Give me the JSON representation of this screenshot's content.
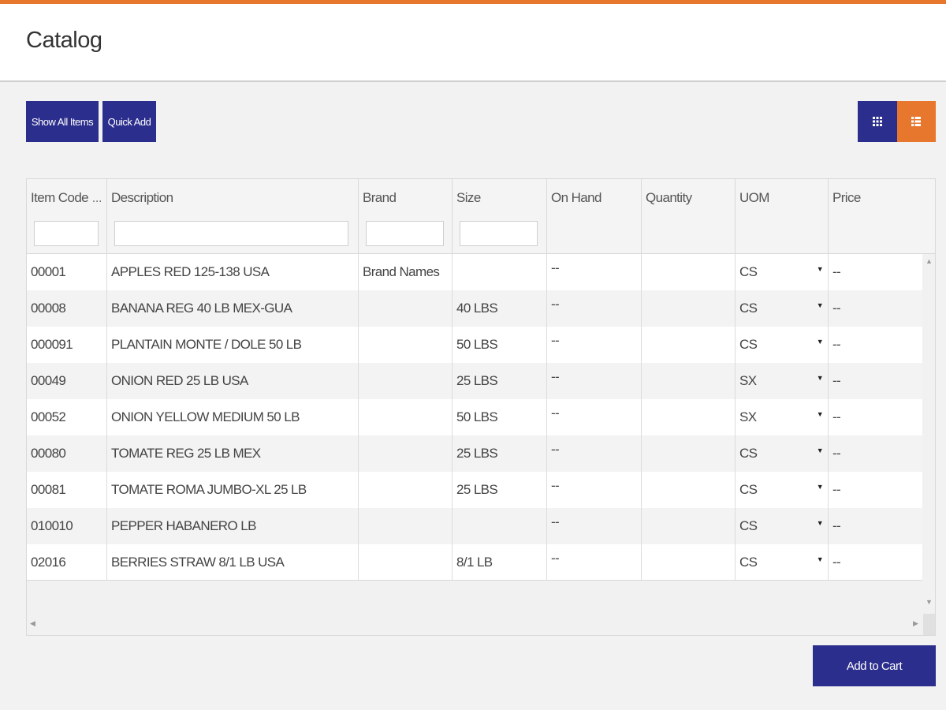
{
  "header": {
    "title": "Catalog"
  },
  "toolbar": {
    "show_all_label": "Show All Items",
    "quick_add_label": "Quick Add",
    "view_grid_icon": "grid-icon",
    "view_list_icon": "list-icon"
  },
  "colors": {
    "accent": "#e8772e",
    "primary": "#2b2e8c"
  },
  "table": {
    "columns": [
      "Item Code",
      "Description",
      "Brand",
      "Size",
      "On Hand",
      "Quantity",
      "UOM",
      "Price"
    ],
    "truncation": "...",
    "rows": [
      {
        "code": "00001",
        "description": "APPLES RED 125-138 USA",
        "brand": "Brand Names",
        "size": "",
        "on_hand": "--",
        "quantity": "",
        "uom": "CS",
        "price": "--"
      },
      {
        "code": "00008",
        "description": "BANANA REG 40 LB MEX-GUA",
        "brand": "",
        "size": "40 LBS",
        "on_hand": "--",
        "quantity": "",
        "uom": "CS",
        "price": "--"
      },
      {
        "code": "000091",
        "description": "PLANTAIN MONTE / DOLE 50 LB",
        "brand": "",
        "size": "50 LBS",
        "on_hand": "--",
        "quantity": "",
        "uom": "CS",
        "price": "--"
      },
      {
        "code": "00049",
        "description": "ONION RED 25 LB USA",
        "brand": "",
        "size": "25 LBS",
        "on_hand": "--",
        "quantity": "",
        "uom": "SX",
        "price": "--"
      },
      {
        "code": "00052",
        "description": "ONION YELLOW MEDIUM 50 LB",
        "brand": "",
        "size": "50 LBS",
        "on_hand": "--",
        "quantity": "",
        "uom": "SX",
        "price": "--"
      },
      {
        "code": "00080",
        "description": "TOMATE REG 25 LB MEX",
        "brand": "",
        "size": "25 LBS",
        "on_hand": "--",
        "quantity": "",
        "uom": "CS",
        "price": "--"
      },
      {
        "code": "00081",
        "description": "TOMATE ROMA JUMBO-XL 25 LB",
        "brand": "",
        "size": "25 LBS",
        "on_hand": "--",
        "quantity": "",
        "uom": "CS",
        "price": "--"
      },
      {
        "code": "010010",
        "description": "PEPPER HABANERO LB",
        "brand": "",
        "size": "",
        "on_hand": "--",
        "quantity": "",
        "uom": "CS",
        "price": "--"
      },
      {
        "code": "02016",
        "description": "BERRIES STRAW 8/1 LB USA",
        "brand": "",
        "size": "8/1 LB",
        "on_hand": "--",
        "quantity": "",
        "uom": "CS",
        "price": "--"
      }
    ]
  },
  "footer": {
    "add_to_cart_label": "Add to Cart"
  }
}
